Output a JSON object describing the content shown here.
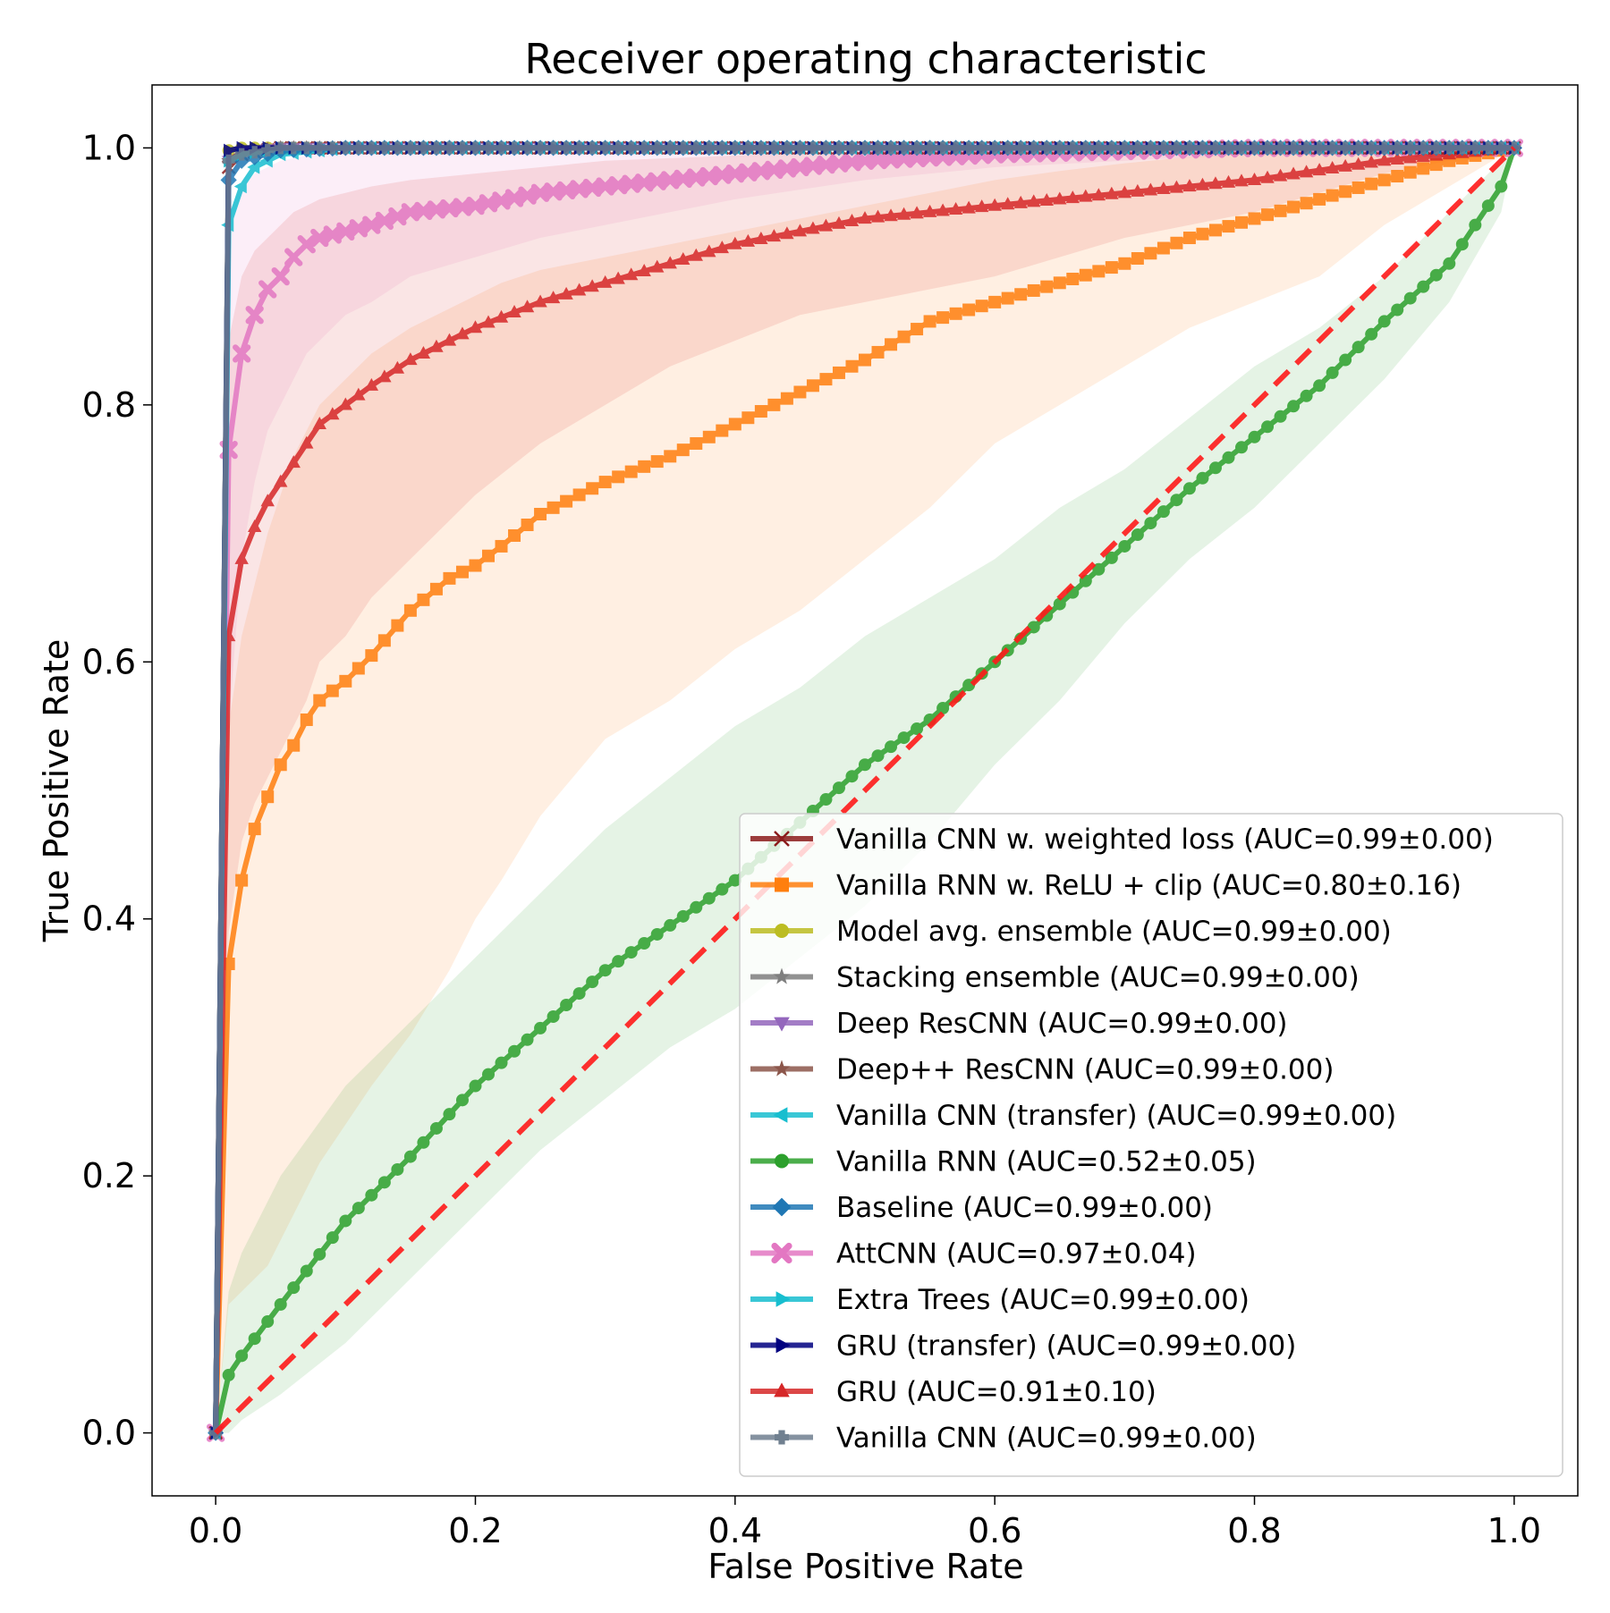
{
  "chart_data": {
    "type": "line",
    "title": "Receiver operating characteristic",
    "xlabel": "False Positive Rate",
    "ylabel": "True Positive Rate",
    "xlim": [
      -0.049,
      1.049
    ],
    "ylim": [
      -0.049,
      1.049
    ],
    "xticks": [
      0.0,
      0.2,
      0.4,
      0.6,
      0.8,
      1.0
    ],
    "xtick_labels": [
      "0.0",
      "0.2",
      "0.4",
      "0.6",
      "0.8",
      "1.0"
    ],
    "yticks": [
      0.0,
      0.2,
      0.4,
      0.6,
      0.8,
      1.0
    ],
    "ytick_labels": [
      "0.0",
      "0.2",
      "0.4",
      "0.6",
      "0.8",
      "1.0"
    ],
    "grid": false,
    "legend_position": "lower-right",
    "chance_line": {
      "x": [
        0,
        1
      ],
      "y": [
        0,
        1
      ],
      "color": "#ff1a1a",
      "style": "dashed"
    },
    "series": [
      {
        "name": "Vanilla CNN w. weighted loss (AUC=0.99±0.00)",
        "color": "#8c1c1c",
        "marker": "x",
        "x": [
          0,
          0.01,
          0.02,
          0.05,
          0.1,
          1.0
        ],
        "y": [
          0,
          0.985,
          0.995,
          1.0,
          1.0,
          1.0
        ]
      },
      {
        "name": "Vanilla RNN w. ReLU + clip (AUC=0.80±0.16)",
        "color": "#ff7f0e",
        "marker": "s",
        "x": [
          0,
          0.01,
          0.02,
          0.03,
          0.04,
          0.05,
          0.06,
          0.07,
          0.08,
          0.1,
          0.12,
          0.15,
          0.18,
          0.2,
          0.22,
          0.25,
          0.3,
          0.35,
          0.4,
          0.45,
          0.5,
          0.55,
          0.6,
          0.65,
          0.7,
          0.75,
          0.8,
          0.85,
          0.9,
          0.95,
          1.0
        ],
        "y": [
          0,
          0.365,
          0.43,
          0.47,
          0.495,
          0.52,
          0.535,
          0.555,
          0.57,
          0.585,
          0.605,
          0.64,
          0.665,
          0.675,
          0.69,
          0.715,
          0.74,
          0.76,
          0.785,
          0.81,
          0.835,
          0.865,
          0.88,
          0.895,
          0.91,
          0.93,
          0.945,
          0.96,
          0.975,
          0.99,
          1.0
        ],
        "band_upper": [
          0.25,
          0.55,
          0.62,
          0.66,
          0.7,
          0.73,
          0.76,
          0.78,
          0.8,
          0.82,
          0.84,
          0.86,
          0.875,
          0.885,
          0.895,
          0.905,
          0.915,
          0.925,
          0.935,
          0.945,
          0.955,
          0.965,
          0.975,
          0.982,
          0.988,
          0.993,
          0.996,
          0.998,
          0.999,
          1.0,
          1.0
        ],
        "band_lower": [
          0,
          0.1,
          0.11,
          0.12,
          0.13,
          0.15,
          0.17,
          0.19,
          0.21,
          0.24,
          0.27,
          0.31,
          0.36,
          0.4,
          0.43,
          0.48,
          0.54,
          0.57,
          0.61,
          0.64,
          0.68,
          0.72,
          0.77,
          0.8,
          0.83,
          0.86,
          0.88,
          0.9,
          0.94,
          0.97,
          1.0
        ]
      },
      {
        "name": "Model avg. ensemble (AUC=0.99±0.00)",
        "color": "#bcbd22",
        "marker": "o",
        "x": [
          0,
          0.01,
          0.02,
          0.05,
          0.1,
          1.0
        ],
        "y": [
          0,
          0.998,
          1.0,
          1.0,
          1.0,
          1.0
        ]
      },
      {
        "name": "Stacking ensemble (AUC=0.99±0.00)",
        "color": "#7f7f7f",
        "marker": "*",
        "x": [
          0,
          0.01,
          0.02,
          0.05,
          0.1,
          1.0
        ],
        "y": [
          0,
          0.99,
          0.995,
          1.0,
          1.0,
          1.0
        ]
      },
      {
        "name": "Deep ResCNN (AUC=0.99±0.00)",
        "color": "#9467bd",
        "marker": "v",
        "x": [
          0,
          0.01,
          0.02,
          0.05,
          0.1,
          1.0
        ],
        "y": [
          0,
          0.99,
          0.997,
          1.0,
          1.0,
          1.0
        ]
      },
      {
        "name": "Deep++ ResCNN (AUC=0.99±0.00)",
        "color": "#8c564b",
        "marker": "*",
        "x": [
          0,
          0.01,
          0.02,
          0.05,
          0.1,
          1.0
        ],
        "y": [
          0,
          0.99,
          0.997,
          1.0,
          1.0,
          1.0
        ]
      },
      {
        "name": "Vanilla CNN (transfer) (AUC=0.99±0.00)",
        "color": "#17becf",
        "marker": "<",
        "x": [
          0,
          0.01,
          0.02,
          0.03,
          0.05,
          0.1,
          1.0
        ],
        "y": [
          0,
          0.94,
          0.97,
          0.985,
          0.995,
          1.0,
          1.0
        ]
      },
      {
        "name": "Vanilla RNN (AUC=0.52±0.05)",
        "color": "#2ca02c",
        "marker": "o",
        "x": [
          0,
          0.01,
          0.02,
          0.05,
          0.1,
          0.15,
          0.2,
          0.25,
          0.3,
          0.35,
          0.4,
          0.45,
          0.5,
          0.55,
          0.6,
          0.65,
          0.7,
          0.75,
          0.8,
          0.85,
          0.9,
          0.95,
          0.99,
          1.0
        ],
        "y": [
          0,
          0.045,
          0.06,
          0.1,
          0.165,
          0.215,
          0.27,
          0.315,
          0.36,
          0.395,
          0.43,
          0.475,
          0.52,
          0.555,
          0.6,
          0.645,
          0.69,
          0.735,
          0.775,
          0.815,
          0.865,
          0.91,
          0.97,
          1.0
        ],
        "band_upper": [
          0,
          0.11,
          0.14,
          0.2,
          0.27,
          0.32,
          0.37,
          0.42,
          0.47,
          0.51,
          0.55,
          0.58,
          0.62,
          0.65,
          0.68,
          0.72,
          0.75,
          0.79,
          0.83,
          0.86,
          0.9,
          0.95,
          0.99,
          1.0
        ],
        "band_lower": [
          0,
          0.0,
          0.01,
          0.03,
          0.07,
          0.12,
          0.17,
          0.22,
          0.26,
          0.3,
          0.33,
          0.37,
          0.41,
          0.46,
          0.52,
          0.57,
          0.63,
          0.68,
          0.72,
          0.77,
          0.82,
          0.88,
          0.95,
          1.0
        ]
      },
      {
        "name": "Baseline (AUC=0.99±0.00)",
        "color": "#1f77b4",
        "marker": "D",
        "x": [
          0,
          0.01,
          0.02,
          0.05,
          0.1,
          1.0
        ],
        "y": [
          0,
          0.975,
          0.99,
          0.998,
          1.0,
          1.0
        ]
      },
      {
        "name": "AttCNN (AUC=0.97±0.04)",
        "color": "#e377c2",
        "marker": "X",
        "x": [
          0,
          0.01,
          0.02,
          0.03,
          0.04,
          0.05,
          0.06,
          0.07,
          0.08,
          0.1,
          0.12,
          0.15,
          0.2,
          0.25,
          0.3,
          0.35,
          0.4,
          0.5,
          0.6,
          0.8,
          1.0
        ],
        "y": [
          0,
          0.765,
          0.84,
          0.87,
          0.89,
          0.9,
          0.915,
          0.925,
          0.93,
          0.935,
          0.94,
          0.95,
          0.955,
          0.965,
          0.97,
          0.975,
          0.98,
          0.99,
          0.995,
          1.0,
          1.0
        ],
        "band_upper": [
          0,
          0.95,
          0.97,
          0.98,
          0.985,
          0.99,
          0.992,
          0.994,
          0.996,
          0.998,
          1.0,
          1.0,
          1.0,
          1.0,
          1.0,
          1.0,
          1.0,
          1.0,
          1.0,
          1.0,
          1.0
        ],
        "band_lower": [
          0,
          0.55,
          0.68,
          0.74,
          0.78,
          0.8,
          0.82,
          0.84,
          0.85,
          0.87,
          0.88,
          0.9,
          0.915,
          0.93,
          0.94,
          0.95,
          0.96,
          0.975,
          0.985,
          0.995,
          1.0
        ]
      },
      {
        "name": "Extra Trees (AUC=0.99±0.00)",
        "color": "#17becf",
        "marker": ">",
        "x": [
          0,
          0.01,
          0.02,
          0.05,
          0.1,
          1.0
        ],
        "y": [
          0,
          0.99,
          0.995,
          1.0,
          1.0,
          1.0
        ]
      },
      {
        "name": "GRU (transfer) (AUC=0.99±0.00)",
        "color": "#000080",
        "marker": ">",
        "x": [
          0,
          0.01,
          0.02,
          0.05,
          0.1,
          1.0
        ],
        "y": [
          0,
          0.998,
          1.0,
          1.0,
          1.0,
          1.0
        ]
      },
      {
        "name": "GRU (AUC=0.91±0.10)",
        "color": "#d62728",
        "marker": "^",
        "x": [
          0,
          0.01,
          0.02,
          0.03,
          0.04,
          0.05,
          0.06,
          0.07,
          0.08,
          0.1,
          0.12,
          0.15,
          0.2,
          0.25,
          0.3,
          0.35,
          0.4,
          0.45,
          0.5,
          0.6,
          0.7,
          0.8,
          0.9,
          1.0
        ],
        "y": [
          0,
          0.62,
          0.68,
          0.705,
          0.725,
          0.74,
          0.755,
          0.77,
          0.785,
          0.8,
          0.815,
          0.835,
          0.86,
          0.88,
          0.895,
          0.91,
          0.925,
          0.935,
          0.945,
          0.955,
          0.965,
          0.975,
          0.99,
          1.0
        ],
        "band_upper": [
          0,
          0.85,
          0.9,
          0.92,
          0.93,
          0.94,
          0.95,
          0.955,
          0.96,
          0.965,
          0.97,
          0.975,
          0.98,
          0.985,
          0.99,
          0.992,
          0.994,
          0.996,
          0.997,
          0.998,
          0.999,
          1.0,
          1.0,
          1.0
        ],
        "band_lower": [
          0,
          0.39,
          0.46,
          0.49,
          0.51,
          0.53,
          0.55,
          0.57,
          0.6,
          0.62,
          0.65,
          0.68,
          0.73,
          0.77,
          0.8,
          0.83,
          0.85,
          0.87,
          0.88,
          0.9,
          0.93,
          0.95,
          0.98,
          1.0
        ]
      },
      {
        "name": "Vanilla CNN (AUC=0.99±0.00)",
        "color": "#708090",
        "marker": "P",
        "x": [
          0,
          0.01,
          0.02,
          0.05,
          0.1,
          1.0
        ],
        "y": [
          0,
          0.99,
          0.995,
          1.0,
          1.0,
          1.0
        ]
      }
    ]
  }
}
